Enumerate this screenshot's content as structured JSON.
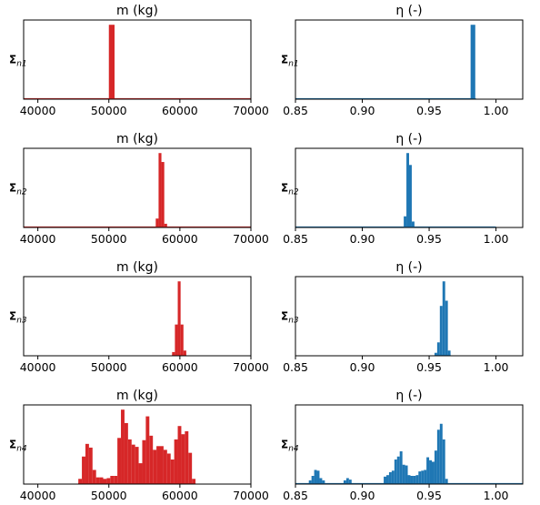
{
  "chart_data": [
    {
      "type": "histogram",
      "row": 1,
      "col": 1,
      "title": "m (kg)",
      "row_label_main": "Σ",
      "row_label_sub": "n1",
      "color": "#d62728",
      "xlim": [
        38000,
        70000
      ],
      "xticks": [
        40000,
        50000,
        60000,
        70000
      ],
      "xticklabels": [
        "40000",
        "50000",
        "60000",
        "70000"
      ],
      "bin_start": 50000,
      "bin_width": 800,
      "counts": [
        1.0
      ],
      "baseline": [
        38000,
        70000
      ]
    },
    {
      "type": "histogram",
      "row": 1,
      "col": 2,
      "title": "η (-)",
      "row_label_main": "Σ",
      "row_label_sub": "n1",
      "color": "#1f77b4",
      "xlim": [
        0.85,
        1.02
      ],
      "xticks": [
        0.85,
        0.9,
        0.95,
        1.0
      ],
      "xticklabels": [
        "0.85",
        "0.90",
        "0.95",
        "1.00"
      ],
      "bin_start": 0.981,
      "bin_width": 0.0035,
      "counts": [
        1.0
      ],
      "baseline": [
        0.85,
        0.985
      ]
    },
    {
      "type": "histogram",
      "row": 2,
      "col": 1,
      "title": "m (kg)",
      "row_label_main": "Σ",
      "row_label_sub": "n2",
      "color": "#d62728",
      "xlim": [
        38000,
        70000
      ],
      "xticks": [
        40000,
        50000,
        60000,
        70000
      ],
      "xticklabels": [
        "40000",
        "50000",
        "60000",
        "70000"
      ],
      "bin_start": 56600,
      "bin_width": 400,
      "counts": [
        0.12,
        1.0,
        0.88,
        0.05
      ],
      "baseline": [
        38000,
        70000
      ]
    },
    {
      "type": "histogram",
      "row": 2,
      "col": 2,
      "title": "η (-)",
      "row_label_main": "Σ",
      "row_label_sub": "n2",
      "color": "#1f77b4",
      "xlim": [
        0.85,
        1.02
      ],
      "xticks": [
        0.85,
        0.9,
        0.95,
        1.0
      ],
      "xticklabels": [
        "0.85",
        "0.90",
        "0.95",
        "1.00"
      ],
      "bin_start": 0.931,
      "bin_width": 0.002,
      "counts": [
        0.15,
        1.0,
        0.84,
        0.08
      ],
      "baseline": [
        0.85,
        1.0
      ]
    },
    {
      "type": "histogram",
      "row": 3,
      "col": 1,
      "title": "m (kg)",
      "row_label_main": "Σ",
      "row_label_sub": "n3",
      "color": "#d62728",
      "xlim": [
        38000,
        70000
      ],
      "xticks": [
        40000,
        50000,
        60000,
        70000
      ],
      "xticklabels": [
        "40000",
        "50000",
        "60000",
        "70000"
      ],
      "bin_start": 58900,
      "bin_width": 400,
      "counts": [
        0.05,
        0.42,
        1.0,
        0.42,
        0.07
      ],
      "baseline": [
        58900,
        60900
      ]
    },
    {
      "type": "histogram",
      "row": 3,
      "col": 2,
      "title": "η (-)",
      "row_label_main": "Σ",
      "row_label_sub": "n3",
      "color": "#1f77b4",
      "xlim": [
        0.85,
        1.02
      ],
      "xticks": [
        0.85,
        0.9,
        0.95,
        1.0
      ],
      "xticklabels": [
        "0.85",
        "0.90",
        "0.95",
        "1.00"
      ],
      "bin_start": 0.954,
      "bin_width": 0.002,
      "counts": [
        0.04,
        0.18,
        0.67,
        1.0,
        0.74,
        0.07
      ],
      "baseline": [
        0.954,
        0.966
      ]
    },
    {
      "type": "histogram",
      "row": 4,
      "col": 1,
      "title": "m (kg)",
      "row_label_main": "Σ",
      "row_label_sub": "n4",
      "color": "#d62728",
      "xlim": [
        38000,
        70000
      ],
      "xticks": [
        40000,
        50000,
        60000,
        70000
      ],
      "xticklabels": [
        "40000",
        "50000",
        "60000",
        "70000"
      ],
      "bin_start": 45700,
      "bin_width": 500,
      "counts": [
        0.07,
        0.37,
        0.54,
        0.49,
        0.19,
        0.09,
        0.09,
        0.07,
        0.08,
        0.11,
        0.11,
        0.62,
        1.0,
        0.82,
        0.6,
        0.53,
        0.5,
        0.28,
        0.59,
        0.91,
        0.65,
        0.46,
        0.51,
        0.51,
        0.46,
        0.41,
        0.33,
        0.6,
        0.78,
        0.67,
        0.71,
        0.42,
        0.07
      ],
      "baseline": [
        45700,
        62200
      ]
    },
    {
      "type": "histogram",
      "row": 4,
      "col": 2,
      "title": "η (-)",
      "row_label_main": "Σ",
      "row_label_sub": "n4",
      "color": "#1f77b4",
      "xlim": [
        0.85,
        1.02
      ],
      "xticks": [
        0.85,
        0.9,
        0.95,
        1.0
      ],
      "xticklabels": [
        "0.85",
        "0.90",
        "0.95",
        "1.00"
      ],
      "bin_start": 0.86,
      "bin_width": 0.002,
      "counts": [
        0.05,
        0.11,
        0.19,
        0.18,
        0.08,
        0.05,
        0.0,
        0.0,
        0.0,
        0.0,
        0.0,
        0.0,
        0.0,
        0.05,
        0.08,
        0.06,
        0.0,
        0.0,
        0.0,
        0.0,
        0.0,
        0.0,
        0.0,
        0.0,
        0.0,
        0.0,
        0.0,
        0.0,
        0.1,
        0.12,
        0.16,
        0.18,
        0.33,
        0.37,
        0.44,
        0.26,
        0.25,
        0.12,
        0.11,
        0.11,
        0.12,
        0.17,
        0.18,
        0.19,
        0.36,
        0.32,
        0.3,
        0.45,
        0.73,
        0.81,
        0.6,
        0.07
      ],
      "baseline": [
        0.85,
        1.02
      ]
    }
  ]
}
